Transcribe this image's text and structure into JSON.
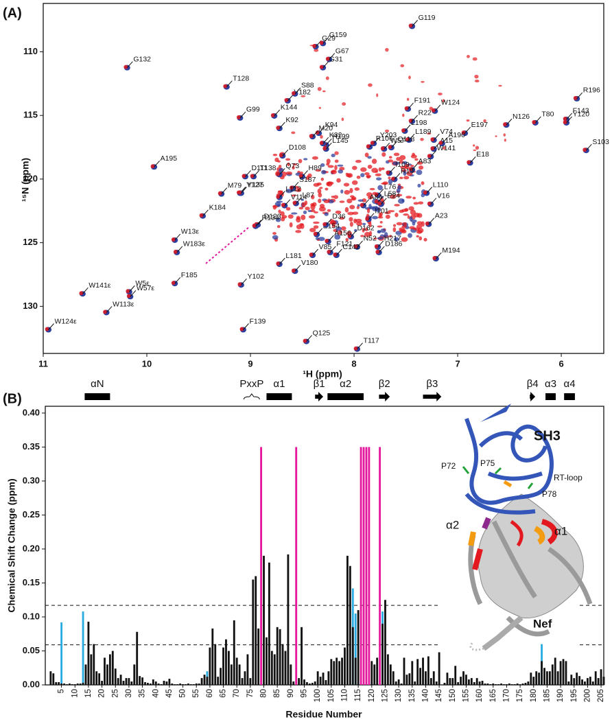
{
  "chart_data": [
    {
      "type": "scatter",
      "panel_label": "(A)",
      "xlabel": "¹H (ppm)",
      "ylabel": "¹⁵N (ppm)",
      "xlim": [
        11,
        5.59
      ],
      "ylim": [
        133.7,
        106.2
      ],
      "xticks": [
        11,
        10,
        9,
        8,
        7,
        6
      ],
      "yticks": [
        110,
        115,
        120,
        125,
        130
      ],
      "color": "#2b3f9e",
      "overlay_color": "#e3191f",
      "labels": [
        "G119",
        "G29",
        "G159",
        "G132",
        "G67",
        "G31",
        "T128",
        "V182",
        "S88",
        "W124",
        "R196",
        "K144",
        "K94",
        "H199",
        "F191",
        "R22",
        "G99",
        "K92",
        "F143",
        "N126",
        "E197",
        "L198",
        "Y120",
        "T80",
        "K82",
        "L145",
        "M20",
        "L189",
        "V74",
        "R106",
        "A15",
        "Y203",
        "A190",
        "D108",
        "Q118",
        "W57",
        "S103",
        "D111",
        "W141",
        "E18",
        "I109",
        "H89",
        "A195",
        "A83",
        "Q73",
        "R19",
        "Y127",
        "T138",
        "M79",
        "L110",
        "S187",
        "L76",
        "Y135",
        "V16",
        "L58",
        "K184",
        "L112",
        "V114",
        "L87",
        "A84",
        "E24",
        "D123",
        "W13ε",
        "I101",
        "R134",
        "E154",
        "D36",
        "D162",
        "A23",
        "A156",
        "H217",
        "W183ε",
        "D186",
        "M194",
        "N52",
        "F121",
        "C142",
        "L181",
        "V85",
        "V180",
        "W5ε",
        "W141ε",
        "F185",
        "W113ε",
        "W57ε",
        "Y102",
        "W124ε",
        "F139",
        "Q125",
        "T117"
      ],
      "x": [
        7.44,
        8.37,
        8.3,
        10.19,
        8.24,
        8.3,
        9.23,
        8.64,
        8.57,
        7.22,
        5.85,
        8.77,
        8.34,
        8.27,
        7.48,
        7.44,
        9.1,
        8.72,
        5.95,
        6.53,
        6.93,
        7.51,
        5.95,
        6.25,
        8.3,
        8.27,
        8.4,
        7.47,
        7.23,
        7.85,
        7.23,
        7.81,
        7.15,
        8.69,
        7.64,
        7.71,
        5.76,
        9.05,
        7.26,
        6.88,
        7.66,
        8.5,
        9.93,
        7.44,
        8.72,
        7.61,
        9.1,
        8.97,
        9.28,
        7.3,
        8.59,
        7.77,
        9.09,
        7.26,
        7.77,
        9.46,
        8.72,
        8.67,
        8.56,
        7.91,
        7.74,
        8.93,
        9.73,
        7.86,
        8.95,
        8.36,
        8.27,
        8.03,
        7.28,
        8.25,
        7.77,
        9.71,
        7.76,
        7.21,
        7.97,
        8.23,
        8.17,
        8.72,
        8.4,
        8.57,
        10.17,
        10.62,
        9.73,
        10.39,
        10.16,
        9.09,
        10.95,
        9.07,
        8.46,
        7.97
      ],
      "values": [
        108.0,
        109.6,
        109.35,
        111.25,
        110.6,
        111.25,
        112.76,
        113.85,
        113.31,
        114.66,
        113.69,
        115.04,
        116.4,
        117.32,
        114.5,
        115.47,
        115.2,
        116.02,
        115.31,
        115.75,
        116.4,
        116.23,
        115.58,
        115.58,
        117.21,
        117.64,
        116.67,
        116.94,
        116.94,
        117.48,
        117.64,
        117.21,
        117.21,
        118.18,
        117.53,
        117.64,
        117.75,
        119.81,
        118.24,
        118.73,
        119.54,
        119.81,
        119.05,
        119.27,
        119.65,
        120.03,
        121.11,
        119.81,
        121.17,
        121.11,
        120.73,
        121.27,
        121.11,
        121.98,
        121.82,
        122.9,
        121.44,
        122.09,
        121.92,
        122.09,
        121.98,
        123.6,
        124.8,
        123.17,
        123.71,
        124.36,
        123.6,
        124.53,
        123.55,
        124.91,
        125.34,
        125.77,
        125.77,
        126.26,
        125.34,
        125.77,
        125.99,
        126.69,
        125.99,
        127.24,
        128.86,
        129.02,
        128.21,
        130.49,
        129.24,
        128.32,
        131.84,
        131.84,
        132.76,
        133.36
      ]
    },
    {
      "type": "bar",
      "panel_label": "(B)",
      "xlabel": "Residue Number",
      "ylabel": "Chemical Shift Change (ppm)",
      "xlim": [
        -1,
        206
      ],
      "ylim": [
        0,
        0.41
      ],
      "xticks": [
        5,
        10,
        15,
        20,
        25,
        30,
        35,
        40,
        45,
        50,
        55,
        60,
        65,
        70,
        75,
        80,
        85,
        90,
        95,
        100,
        105,
        110,
        115,
        120,
        125,
        130,
        135,
        140,
        145,
        150,
        155,
        160,
        165,
        170,
        175,
        180,
        185,
        190,
        195,
        200,
        205
      ],
      "yticks": [
        {
          "value": 0,
          "label": "0.00"
        },
        {
          "value": 0.05,
          "label": "0.05"
        },
        {
          "value": 0.1,
          "label": "0.10"
        },
        {
          "value": 0.15,
          "label": "0.15"
        },
        {
          "value": 0.2,
          "label": "0.20"
        },
        {
          "value": 0.25,
          "label": "0.25"
        },
        {
          "value": 0.3,
          "label": "0.30"
        },
        {
          "value": 0.35,
          "label": "0.35"
        },
        {
          "value": 0.4,
          "label": "0.40"
        }
      ],
      "reference_lines": [
        0.117,
        0.059
      ],
      "series": [
        {
          "color": "#29abe2",
          "x": [
            5,
            13,
            59,
            113,
            114,
            124,
            140,
            183
          ],
          "values": [
            0.092,
            0.108,
            0.02,
            0.142,
            0.105,
            0.108,
            0.008,
            0.06
          ]
        },
        {
          "color": "#111111",
          "x": [
            1,
            2,
            3,
            4,
            5,
            6,
            7,
            8,
            9,
            10,
            11,
            12,
            13,
            14,
            15,
            16,
            17,
            18,
            19,
            20,
            21,
            22,
            23,
            24,
            25,
            26,
            27,
            28,
            29,
            30,
            31,
            32,
            33,
            34,
            35,
            36,
            37,
            38,
            39,
            40,
            41,
            42,
            43,
            44,
            45,
            46,
            47,
            48,
            49,
            50,
            51,
            52,
            53,
            54,
            55,
            56,
            57,
            58,
            59,
            60,
            61,
            62,
            63,
            64,
            65,
            66,
            67,
            68,
            69,
            70,
            71,
            72,
            73,
            74,
            75,
            76,
            77,
            78,
            79,
            80,
            81,
            82,
            83,
            84,
            85,
            86,
            87,
            88,
            89,
            90,
            91,
            92,
            93,
            94,
            95,
            96,
            97,
            98,
            99,
            100,
            101,
            102,
            103,
            104,
            105,
            106,
            107,
            108,
            109,
            110,
            111,
            112,
            113,
            114,
            115,
            116,
            117,
            118,
            119,
            120,
            121,
            122,
            123,
            124,
            125,
            126,
            127,
            128,
            129,
            130,
            131,
            132,
            133,
            134,
            135,
            136,
            137,
            138,
            139,
            140,
            141,
            142,
            143,
            144,
            145,
            146,
            147,
            148,
            149,
            150,
            151,
            152,
            153,
            154,
            155,
            156,
            157,
            158,
            159,
            160,
            161,
            162,
            163,
            164,
            165,
            166,
            167,
            168,
            169,
            170,
            171,
            172,
            173,
            174,
            175,
            176,
            177,
            178,
            179,
            180,
            181,
            182,
            183,
            184,
            185,
            186,
            187,
            188,
            189,
            190,
            191,
            192,
            193,
            194,
            195,
            196,
            197,
            198,
            199,
            200,
            201,
            202,
            203,
            204,
            205,
            206
          ],
          "values": [
            0.02,
            0.017,
            0.004,
            0.004,
            0.002,
            0.002,
            0.001,
            0.002,
            0.001,
            0.001,
            0.002,
            0.002,
            0.003,
            0.03,
            0.093,
            0.045,
            0.06,
            0.02,
            0.017,
            0.006,
            0.04,
            0.03,
            0.045,
            0.05,
            0.024,
            0.01,
            0.015,
            0.006,
            0.01,
            0.01,
            0.005,
            0.03,
            0.078,
            0.013,
            0.011,
            0.004,
            0.003,
            0.002,
            0.008,
            0.005,
            0.002,
            0.001,
            0.006,
            0.005,
            0.009,
            0.002,
            0.001,
            0.001,
            0.002,
            0.001,
            0.001,
            0.002,
            0.001,
            0.001,
            0.002,
            0.002,
            0.01,
            0.015,
            0.012,
            0.055,
            0.083,
            0.06,
            0.012,
            0.025,
            0.055,
            0.067,
            0.05,
            0.03,
            0.095,
            0.04,
            0.03,
            0.01,
            0.02,
            0.045,
            0.01,
            0.155,
            0.16,
            0.083,
            null,
            0.19,
            0.07,
            0.18,
            0.05,
            0.045,
            0.085,
            0.082,
            0.06,
            0.05,
            0.192,
            0.03,
            0.005,
            null,
            0.01,
            0.085,
            0.008,
            0.004,
            0.002,
            0.003,
            0.005,
            0.02,
            0.012,
            0.018,
            0.007,
            0.02,
            0.038,
            0.035,
            0.04,
            0.035,
            0.04,
            0.055,
            0.19,
            0.175,
            0.085,
            0.04,
            0.11,
            null,
            null,
            null,
            null,
            0.035,
            0.03,
            0.04,
            null,
            0.09,
            0.125,
            0.045,
            0.03,
            0.02,
            0.005,
            0.008,
            0.002,
            0.04,
            0.015,
            0.017,
            0.035,
            0.005,
            0.038,
            0.025,
            0.04,
            0.02,
            0.042,
            0.01,
            0.02,
            0.005,
            0.048,
            0.0,
            0.003,
            0.018,
            0.01,
            0.01,
            0.028,
            0.004,
            0.012,
            0.02,
            0.015,
            0.008,
            0.01,
            0.004,
            0.01,
            0.005,
            0.006,
            0.002,
            0.002,
            0.001,
            0.002,
            0.001,
            0.001,
            0.002,
            0.001,
            0.001,
            0.002,
            0.001,
            0.001,
            0.002,
            0.001,
            0.002,
            0.003,
            0.005,
            0.018,
            0.012,
            0.02,
            0.018,
            0.035,
            0.025,
            0.02,
            0.02,
            0.03,
            0.04,
            0.02,
            0.035,
            0.038,
            0.035,
            0.005,
            0.015,
            0.01,
            0.018,
            0.013,
            0.008,
            0.005,
            0.01,
            0.012,
            0.005,
            0.02,
            0.01,
            0.023,
            0.012
          ]
        },
        {
          "color": "#e4169b",
          "x": [
            79,
            92,
            116,
            117,
            118,
            119,
            123
          ],
          "values": [
            0.35,
            0.35,
            0.35,
            0.35,
            0.35,
            0.35,
            0.35
          ]
        }
      ],
      "secondary_structure": [
        {
          "label": "αN",
          "kind": "helix",
          "start": 13.6,
          "end": 23
        },
        {
          "label": "PxxP",
          "kind": "motif",
          "start": 72.6,
          "end": 78.4
        },
        {
          "label": "α1",
          "kind": "helix",
          "start": 81,
          "end": 90.4
        },
        {
          "label": "β1",
          "kind": "strand",
          "start": 99,
          "end": 102
        },
        {
          "label": "α2",
          "kind": "helix",
          "start": 103.6,
          "end": 117
        },
        {
          "label": "β2",
          "kind": "strand",
          "start": 122.7,
          "end": 126.7
        },
        {
          "label": "β3",
          "kind": "strand",
          "start": 139,
          "end": 145.8
        },
        {
          "label": "β4",
          "kind": "strand",
          "start": 178.6,
          "end": 180.6
        },
        {
          "label": "α3",
          "kind": "helix",
          "start": 184.4,
          "end": 188.2
        },
        {
          "label": "α4",
          "kind": "helix",
          "start": 191.3,
          "end": 195.3
        }
      ],
      "annotations": [
        "SH3",
        "P72",
        "P75",
        "RT-loop",
        "P78",
        "α2",
        "α1",
        "Nef"
      ]
    }
  ]
}
